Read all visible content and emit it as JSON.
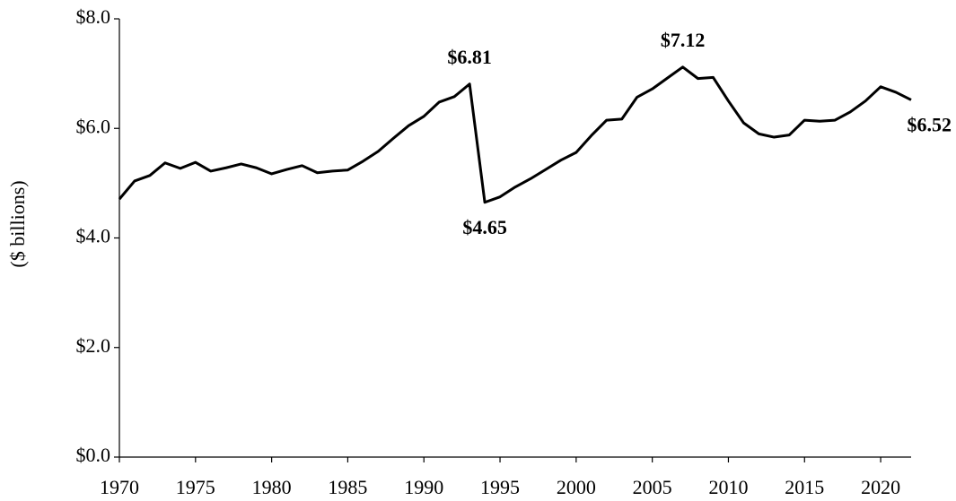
{
  "chart_data": {
    "type": "line",
    "y_label": "($ billions)",
    "x": [
      1970,
      1971,
      1972,
      1973,
      1974,
      1975,
      1976,
      1977,
      1978,
      1979,
      1980,
      1981,
      1982,
      1983,
      1984,
      1985,
      1986,
      1987,
      1988,
      1989,
      1990,
      1991,
      1992,
      1993,
      1994,
      1995,
      1996,
      1997,
      1998,
      1999,
      2000,
      2001,
      2002,
      2003,
      2004,
      2005,
      2006,
      2007,
      2008,
      2009,
      2010,
      2011,
      2012,
      2013,
      2014,
      2015,
      2016,
      2017,
      2018,
      2019,
      2020,
      2021,
      2022
    ],
    "values": [
      4.71,
      5.04,
      5.14,
      5.37,
      5.27,
      5.38,
      5.22,
      5.28,
      5.35,
      5.28,
      5.17,
      5.25,
      5.32,
      5.19,
      5.22,
      5.24,
      5.4,
      5.58,
      5.82,
      6.05,
      6.22,
      6.48,
      6.58,
      6.81,
      4.65,
      4.75,
      4.93,
      5.08,
      5.25,
      5.42,
      5.56,
      5.87,
      6.15,
      6.17,
      6.57,
      6.72,
      6.92,
      7.12,
      6.91,
      6.93,
      6.5,
      6.1,
      5.9,
      5.84,
      5.88,
      6.15,
      6.13,
      6.15,
      6.3,
      6.5,
      6.76,
      6.66,
      6.52
    ],
    "value_labels": [
      null,
      null,
      null,
      null,
      null,
      null,
      null,
      null,
      null,
      null,
      null,
      null,
      null,
      null,
      null,
      null,
      null,
      null,
      null,
      null,
      null,
      null,
      null,
      "$6.81",
      "$4.65",
      null,
      null,
      null,
      null,
      null,
      null,
      null,
      null,
      null,
      null,
      null,
      null,
      "$7.12",
      null,
      null,
      null,
      null,
      null,
      null,
      null,
      null,
      null,
      null,
      null,
      null,
      null,
      null,
      "$6.52"
    ],
    "color": "#000000",
    "xlim": [
      1970,
      2022
    ],
    "xticks": [
      1970,
      1975,
      1980,
      1985,
      1990,
      1995,
      2000,
      2005,
      2010,
      2015,
      2020
    ],
    "ylim": [
      0,
      8
    ],
    "yticks": [
      {
        "value": 0,
        "label": "$0.0"
      },
      {
        "value": 2,
        "label": "$2.0"
      },
      {
        "value": 4,
        "label": "$4.0"
      },
      {
        "value": 6,
        "label": "$6.0"
      },
      {
        "value": 8,
        "label": "$8.0"
      }
    ]
  }
}
